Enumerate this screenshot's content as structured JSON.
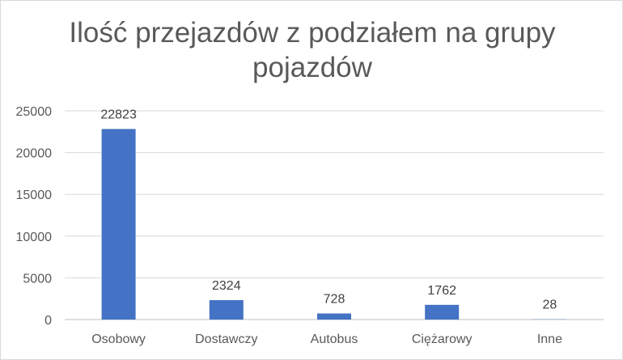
{
  "chart_data": {
    "type": "bar",
    "title": "Ilość przejazdów z podziałem na grupy pojazdów",
    "categories": [
      "Osobowy",
      "Dostawczy",
      "Autobus",
      "Ciężarowy",
      "Inne"
    ],
    "values": [
      22823,
      2324,
      728,
      1762,
      28
    ],
    "data_labels": [
      "22823",
      "2324",
      "728",
      "1762",
      "28"
    ],
    "ylim": [
      0,
      25000
    ],
    "yticks": [
      0,
      5000,
      10000,
      15000,
      20000,
      25000
    ],
    "xlabel": "",
    "ylabel": "",
    "grid": true,
    "legend": "none",
    "bar_color": "#4472c4"
  }
}
